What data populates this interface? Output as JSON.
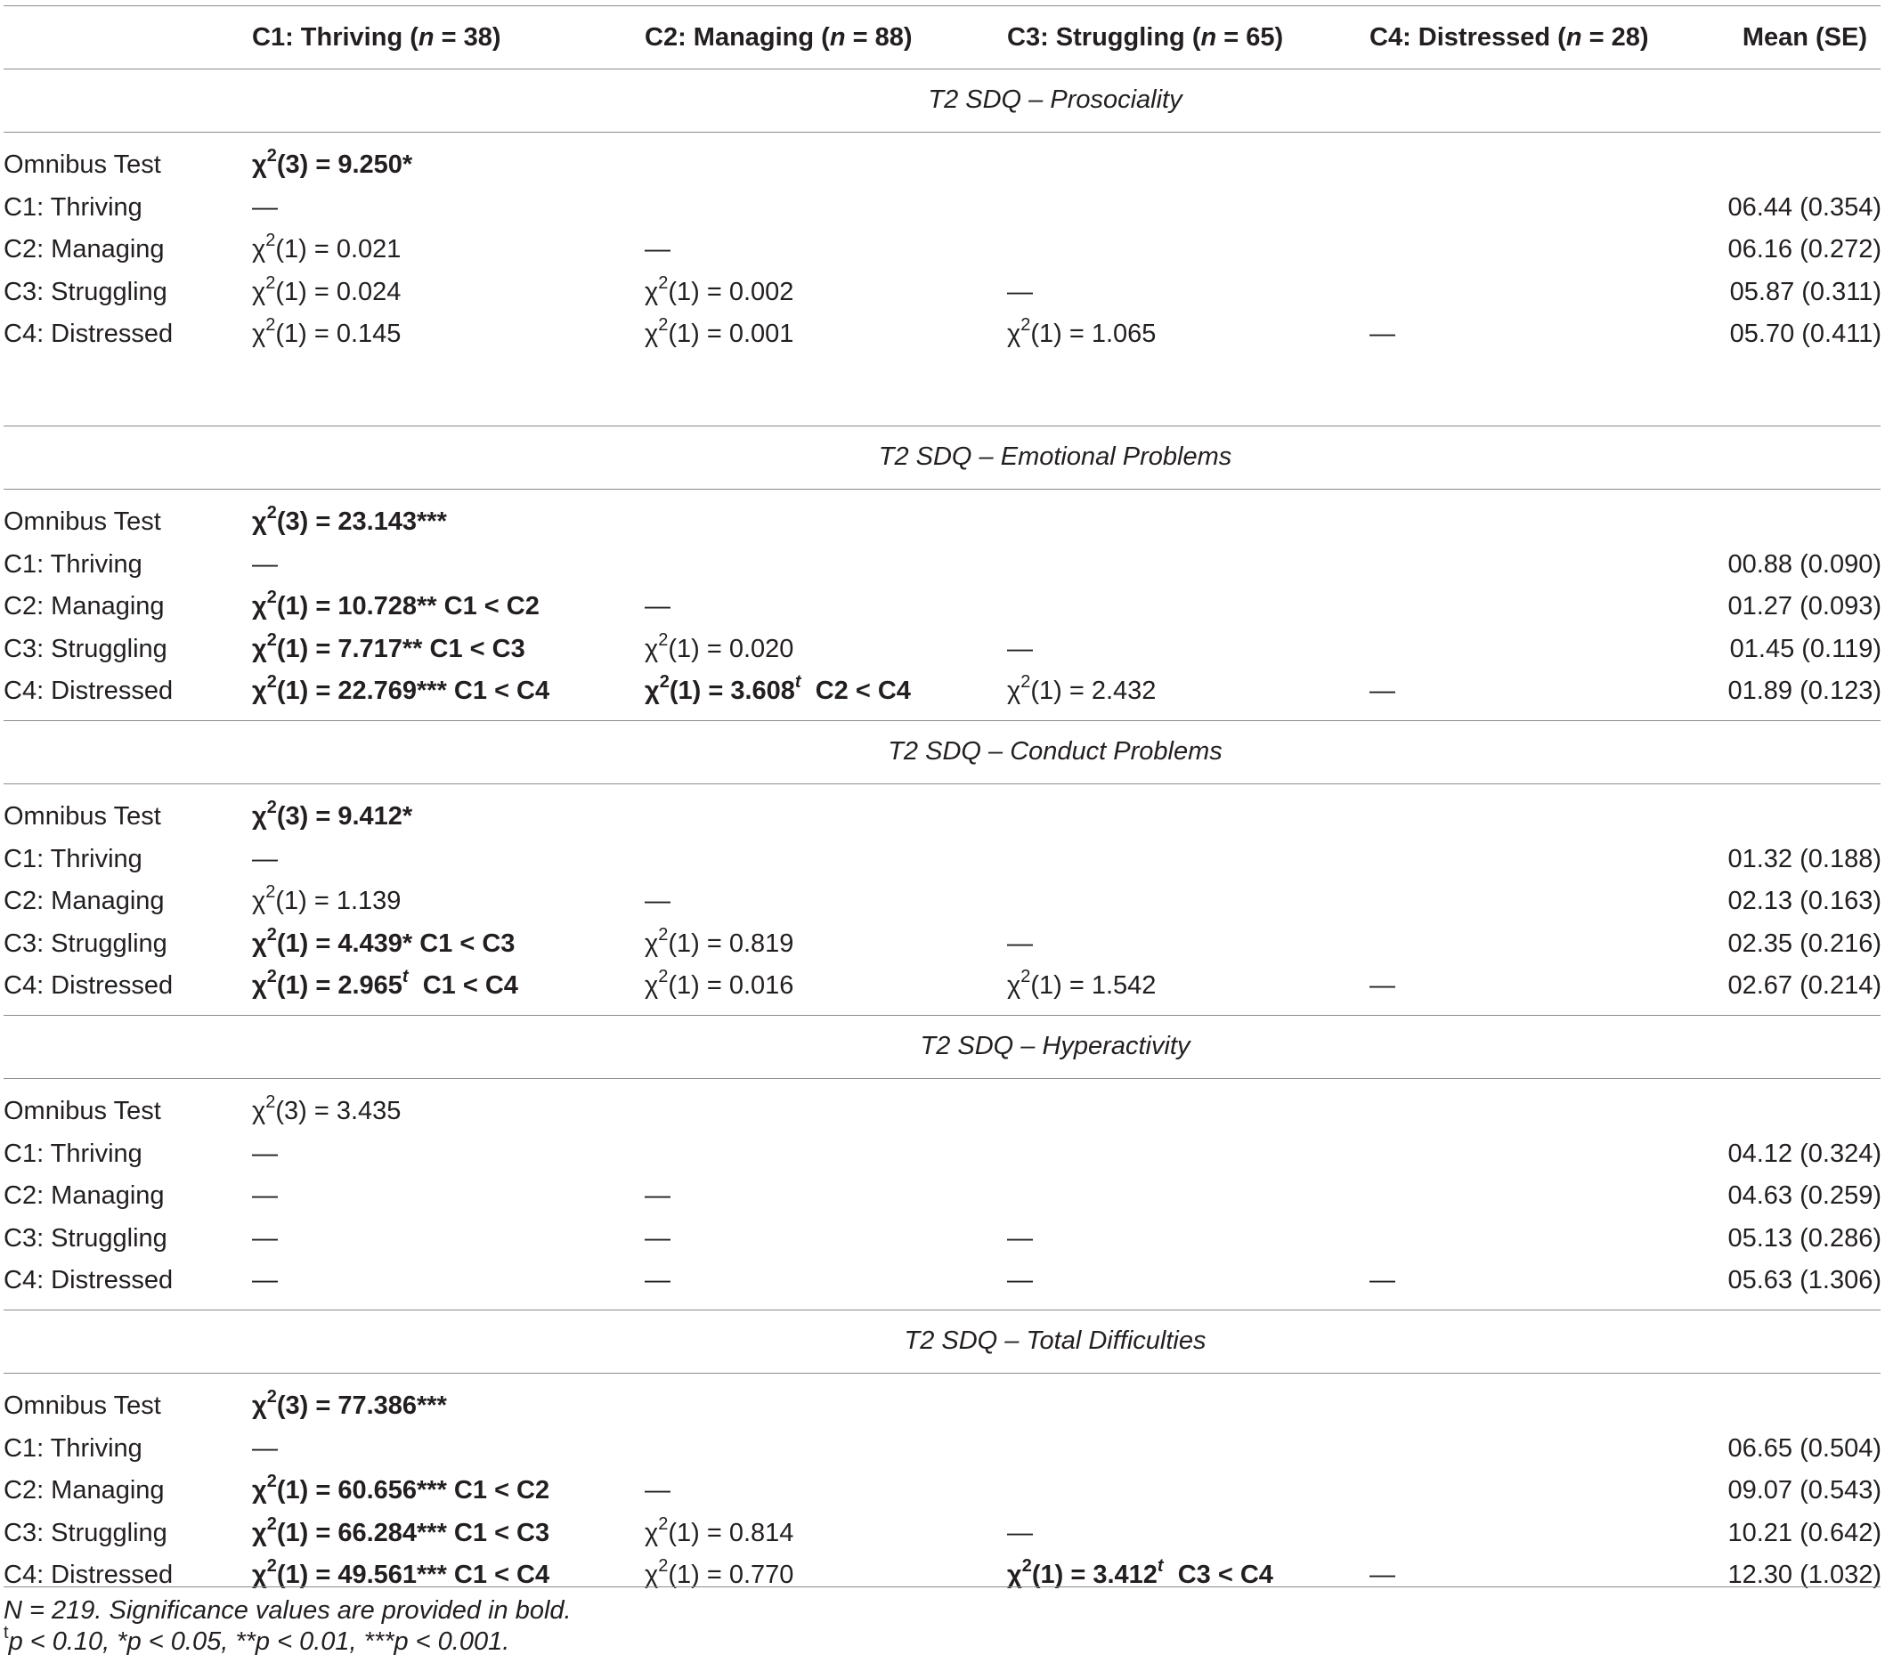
{
  "header": {
    "c1": {
      "pre": "C1: Thriving (",
      "n": "n",
      "post": " = 38)"
    },
    "c2": {
      "pre": "C2: Managing (",
      "n": "n",
      "post": " = 88)"
    },
    "c3": {
      "pre": "C3: Struggling (",
      "n": "n",
      "post": " = 65)"
    },
    "c4": {
      "pre": "C4: Distressed (",
      "n": "n",
      "post": " = 28)"
    },
    "mean": "Mean (SE)"
  },
  "sections": [
    {
      "title": "T2 SDQ – Prosociality",
      "rows": [
        {
          "label": "Omnibus Test",
          "cells": [
            {
              "pre": "χ",
              "sup": "2",
              "post": "(3) = 9.250*",
              "bold": true
            }
          ],
          "mean": ""
        },
        {
          "label": "C1: Thriving",
          "cells": [
            {
              "pre": "—"
            }
          ],
          "mean": "06.44 (0.354)"
        },
        {
          "label": "C2: Managing",
          "cells": [
            {
              "pre": "χ",
              "sup": "2",
              "post": "(1) = 0.021"
            },
            {
              "pre": "—"
            }
          ],
          "mean": "06.16 (0.272)"
        },
        {
          "label": "C3: Struggling",
          "cells": [
            {
              "pre": "χ",
              "sup": "2",
              "post": "(1) = 0.024"
            },
            {
              "pre": "χ",
              "sup": "2",
              "post": "(1) = 0.002"
            },
            {
              "pre": "—"
            }
          ],
          "mean": "05.87 (0.311)"
        },
        {
          "label": "C4: Distressed",
          "cells": [
            {
              "pre": "χ",
              "sup": "2",
              "post": "(1) = 0.145"
            },
            {
              "pre": "χ",
              "sup": "2",
              "post": "(1) = 0.001"
            },
            {
              "pre": "χ",
              "sup": "2",
              "post": "(1) = 1.065"
            },
            {
              "pre": "—"
            }
          ],
          "mean": "05.70 (0.411)"
        }
      ]
    },
    {
      "title": "T2 SDQ – Emotional Problems",
      "rows": [
        {
          "label": "Omnibus Test",
          "cells": [
            {
              "pre": "χ",
              "sup": "2",
              "post": "(3) = 23.143***",
              "bold": true
            }
          ],
          "mean": ""
        },
        {
          "label": "C1: Thriving",
          "cells": [
            {
              "pre": "—"
            }
          ],
          "mean": "00.88 (0.090)"
        },
        {
          "label": "C2: Managing",
          "cells": [
            {
              "pre": "χ",
              "sup": "2",
              "post": "(1) = 10.728** C1 < C2",
              "bold": true
            },
            {
              "pre": "—"
            }
          ],
          "mean": "01.27 (0.093)"
        },
        {
          "label": "C3: Struggling",
          "cells": [
            {
              "pre": "χ",
              "sup": "2",
              "post": "(1) = 7.717** C1 < C3",
              "bold": true
            },
            {
              "pre": "χ",
              "sup": "2",
              "post": "(1) = 0.020"
            },
            {
              "pre": "—"
            }
          ],
          "mean": "01.45 (0.119)"
        },
        {
          "label": "C4: Distressed",
          "cells": [
            {
              "pre": "χ",
              "sup": "2",
              "post": "(1) = 22.769*** C1 < C4",
              "bold": true
            },
            {
              "pre": "χ",
              "sup": "2",
              "post": "(1) = 3.608",
              "sup2": "t",
              "post2": "  C2 < C4",
              "bold": true
            },
            {
              "pre": "χ",
              "sup": "2",
              "post": "(1) = 2.432"
            },
            {
              "pre": "—"
            }
          ],
          "mean": "01.89 (0.123)"
        }
      ]
    },
    {
      "title": "T2 SDQ – Conduct Problems",
      "rows": [
        {
          "label": "Omnibus Test",
          "cells": [
            {
              "pre": "χ",
              "sup": "2",
              "post": "(3) = 9.412*",
              "bold": true
            }
          ],
          "mean": ""
        },
        {
          "label": "C1: Thriving",
          "cells": [
            {
              "pre": "—"
            }
          ],
          "mean": "01.32 (0.188)"
        },
        {
          "label": "C2: Managing",
          "cells": [
            {
              "pre": "χ",
              "sup": "2",
              "post": "(1) = 1.139"
            },
            {
              "pre": "—"
            }
          ],
          "mean": "02.13 (0.163)"
        },
        {
          "label": "C3: Struggling",
          "cells": [
            {
              "pre": "χ",
              "sup": "2",
              "post": "(1) = 4.439* C1 < C3",
              "bold": true
            },
            {
              "pre": "χ",
              "sup": "2",
              "post": "(1) = 0.819"
            },
            {
              "pre": "—"
            }
          ],
          "mean": "02.35 (0.216)"
        },
        {
          "label": "C4: Distressed",
          "cells": [
            {
              "pre": "χ",
              "sup": "2",
              "post": "(1) = 2.965",
              "sup2": "t",
              "post2": "  C1 < C4",
              "bold": true
            },
            {
              "pre": "χ",
              "sup": "2",
              "post": "(1) = 0.016"
            },
            {
              "pre": "χ",
              "sup": "2",
              "post": "(1) = 1.542"
            },
            {
              "pre": "—"
            }
          ],
          "mean": "02.67 (0.214)"
        }
      ]
    },
    {
      "title": "T2 SDQ – Hyperactivity",
      "rows": [
        {
          "label": "Omnibus Test",
          "cells": [
            {
              "pre": "χ",
              "sup": "2",
              "post": "(3) = 3.435"
            }
          ],
          "mean": ""
        },
        {
          "label": "C1: Thriving",
          "cells": [
            {
              "pre": "—"
            }
          ],
          "mean": "04.12 (0.324)"
        },
        {
          "label": "C2: Managing",
          "cells": [
            {
              "pre": "—"
            },
            {
              "pre": "—"
            }
          ],
          "mean": "04.63 (0.259)"
        },
        {
          "label": "C3: Struggling",
          "cells": [
            {
              "pre": "—"
            },
            {
              "pre": "—"
            },
            {
              "pre": "—"
            }
          ],
          "mean": "05.13 (0.286)"
        },
        {
          "label": "C4: Distressed",
          "cells": [
            {
              "pre": "—"
            },
            {
              "pre": "—"
            },
            {
              "pre": "—"
            },
            {
              "pre": "—"
            }
          ],
          "mean": "05.63 (1.306)"
        }
      ]
    },
    {
      "title": "T2 SDQ – Total Difficulties",
      "rows": [
        {
          "label": "Omnibus Test",
          "cells": [
            {
              "pre": "χ",
              "sup": "2",
              "post": "(3) = 77.386***",
              "bold": true
            }
          ],
          "mean": ""
        },
        {
          "label": "C1: Thriving",
          "cells": [
            {
              "pre": "—"
            }
          ],
          "mean": "06.65 (0.504)"
        },
        {
          "label": "C2: Managing",
          "cells": [
            {
              "pre": "χ",
              "sup": "2",
              "post": "(1) = 60.656*** C1 < C2",
              "bold": true
            },
            {
              "pre": "—"
            }
          ],
          "mean": "09.07 (0.543)"
        },
        {
          "label": "C3: Struggling",
          "cells": [
            {
              "pre": "χ",
              "sup": "2",
              "post": "(1) = 66.284*** C1 < C3",
              "bold": true
            },
            {
              "pre": "χ",
              "sup": "2",
              "post": "(1) = 0.814"
            },
            {
              "pre": "—"
            }
          ],
          "mean": "10.21 (0.642)"
        },
        {
          "label": "C4: Distressed",
          "cells": [
            {
              "pre": "χ",
              "sup": "2",
              "post": "(1) = 49.561*** C1 < C4",
              "bold": true
            },
            {
              "pre": "χ",
              "sup": "2",
              "post": "(1) = 0.770"
            },
            {
              "pre": "χ",
              "sup": "2",
              "post": "(1) = 3.412",
              "sup2": "t",
              "post2": "  C3 < C4",
              "bold": true
            },
            {
              "pre": "—"
            }
          ],
          "mean": "12.30 (1.032)"
        }
      ]
    }
  ],
  "notes": {
    "line1": "N = 219. Significance values are provided in bold.",
    "line2_sup": "t",
    "line2": "p < 0.10, *p < 0.05, **p < 0.01, ***p < 0.001."
  }
}
